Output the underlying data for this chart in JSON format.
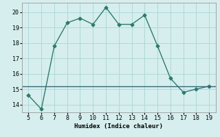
{
  "x": [
    5,
    6,
    7,
    8,
    9,
    10,
    11,
    12,
    13,
    14,
    15,
    16,
    17,
    18,
    19
  ],
  "y": [
    14.6,
    13.7,
    17.8,
    19.3,
    19.6,
    19.2,
    20.3,
    19.2,
    19.2,
    19.8,
    17.8,
    15.7,
    14.8,
    15.0,
    15.2
  ],
  "hline_y": 15.2,
  "xlabel": "Humidex (Indice chaleur)",
  "xlim": [
    4.5,
    19.5
  ],
  "ylim": [
    13.5,
    20.6
  ],
  "xticks": [
    5,
    6,
    7,
    8,
    9,
    10,
    11,
    12,
    13,
    14,
    15,
    16,
    17,
    18,
    19
  ],
  "yticks": [
    14,
    15,
    16,
    17,
    18,
    19,
    20
  ],
  "line_color": "#2d7a6e",
  "hline_color": "#336677",
  "bg_color": "#d6eeee",
  "grid_color": "#aad4d4",
  "marker": "D",
  "marker_size": 2.5,
  "line_width": 1.0
}
